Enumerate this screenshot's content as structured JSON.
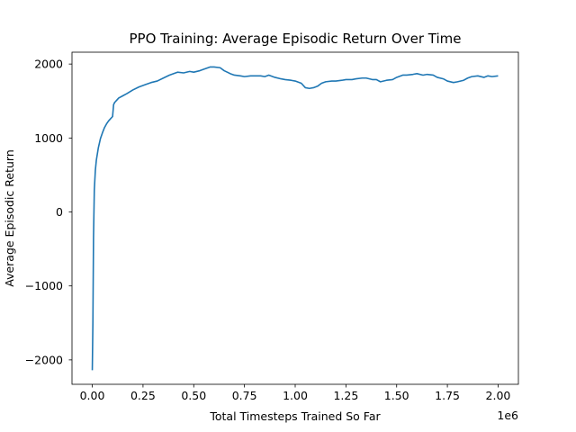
{
  "chart_data": {
    "type": "line",
    "title": "PPO Training: Average Episodic Return Over Time",
    "xlabel": "Total Timesteps Trained So Far",
    "ylabel": "Average Episodic Return",
    "x_offset_label": "1e6",
    "xlim": [
      -0.1,
      2.1
    ],
    "ylim": [
      -2330,
      2160
    ],
    "xticks": [
      0.0,
      0.25,
      0.5,
      0.75,
      1.0,
      1.25,
      1.5,
      1.75,
      2.0
    ],
    "xtick_labels": [
      "0.00",
      "0.25",
      "0.50",
      "0.75",
      "1.00",
      "1.25",
      "1.50",
      "1.75",
      "2.00"
    ],
    "yticks": [
      -2000,
      -1000,
      0,
      1000,
      2000
    ],
    "ytick_labels": [
      "−2000",
      "−1000",
      "0",
      "1000",
      "2000"
    ],
    "grid": false,
    "line_color": "#1f77b4",
    "series": [
      {
        "x": [
          0.0,
          0.003,
          0.006,
          0.01,
          0.015,
          0.02,
          0.03,
          0.04,
          0.05,
          0.06,
          0.07,
          0.08,
          0.09,
          0.1,
          0.105,
          0.11,
          0.12,
          0.13,
          0.15,
          0.17,
          0.2,
          0.23,
          0.26,
          0.29,
          0.32,
          0.35,
          0.38,
          0.4,
          0.42,
          0.45,
          0.48,
          0.5,
          0.53,
          0.55,
          0.58,
          0.6,
          0.63,
          0.65,
          0.68,
          0.7,
          0.73,
          0.75,
          0.78,
          0.8,
          0.83,
          0.85,
          0.87,
          0.9,
          0.93,
          0.95,
          0.98,
          1.0,
          1.03,
          1.05,
          1.07,
          1.09,
          1.11,
          1.13,
          1.15,
          1.18,
          1.2,
          1.23,
          1.25,
          1.28,
          1.3,
          1.33,
          1.35,
          1.38,
          1.4,
          1.42,
          1.45,
          1.48,
          1.5,
          1.53,
          1.55,
          1.58,
          1.6,
          1.63,
          1.65,
          1.68,
          1.7,
          1.73,
          1.75,
          1.78,
          1.8,
          1.83,
          1.85,
          1.87,
          1.9,
          1.93,
          1.95,
          1.97,
          2.0
        ],
        "values": [
          -2140,
          -1500,
          -350,
          300,
          560,
          700,
          870,
          990,
          1070,
          1140,
          1190,
          1230,
          1260,
          1290,
          1450,
          1480,
          1510,
          1540,
          1570,
          1600,
          1650,
          1690,
          1720,
          1750,
          1770,
          1810,
          1850,
          1870,
          1890,
          1880,
          1900,
          1890,
          1910,
          1930,
          1960,
          1960,
          1950,
          1910,
          1870,
          1850,
          1840,
          1830,
          1840,
          1840,
          1840,
          1830,
          1850,
          1820,
          1800,
          1790,
          1780,
          1770,
          1740,
          1680,
          1670,
          1680,
          1700,
          1740,
          1760,
          1770,
          1770,
          1780,
          1790,
          1790,
          1800,
          1810,
          1810,
          1790,
          1790,
          1760,
          1780,
          1790,
          1820,
          1850,
          1850,
          1860,
          1870,
          1850,
          1860,
          1850,
          1820,
          1800,
          1770,
          1750,
          1760,
          1780,
          1810,
          1830,
          1840,
          1820,
          1840,
          1830,
          1840
        ]
      }
    ]
  }
}
